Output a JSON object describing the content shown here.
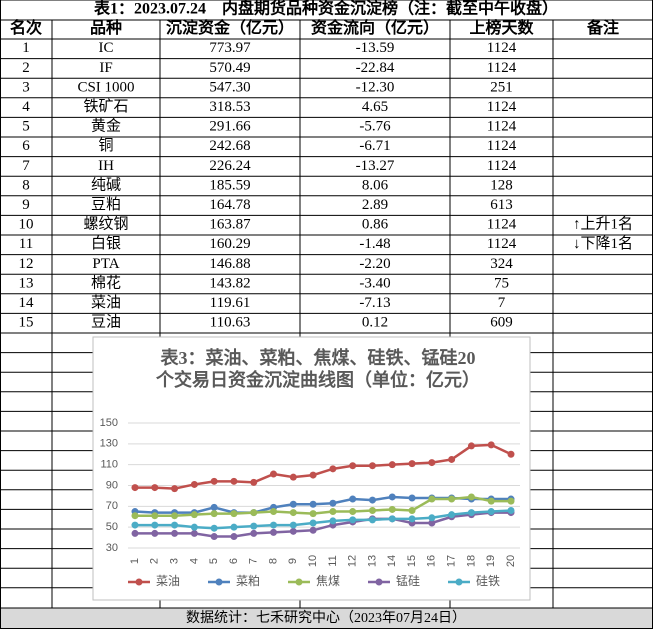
{
  "table": {
    "title": "表1：2023.07.24　内盘期货品种资金沉淀榜（注：截至中午收盘）",
    "headers": [
      "名次",
      "品种",
      "沉淀资金（亿元）",
      "资金流向（亿元）",
      "上榜天数",
      "备注"
    ],
    "rows": [
      [
        "1",
        "IC",
        "773.97",
        "-13.59",
        "1124",
        null
      ],
      [
        "2",
        "IF",
        "570.49",
        "-22.84",
        "1124",
        null
      ],
      [
        "3",
        "CSI 1000",
        "547.30",
        "-12.30",
        "251",
        null
      ],
      [
        "4",
        "铁矿石",
        "318.53",
        "4.65",
        "1124",
        null
      ],
      [
        "5",
        "黄金",
        "291.66",
        "-5.76",
        "1124",
        null
      ],
      [
        "6",
        "铜",
        "242.68",
        "-6.71",
        "1124",
        null
      ],
      [
        "7",
        "IH",
        "226.24",
        "-13.27",
        "1124",
        null
      ],
      [
        "8",
        "纯碱",
        "185.59",
        "8.06",
        "128",
        null
      ],
      [
        "9",
        "豆粕",
        "164.78",
        "2.89",
        "613",
        null
      ],
      [
        "10",
        "螺纹钢",
        "163.87",
        "0.86",
        "1124",
        "↑上升1名"
      ],
      [
        "11",
        "白银",
        "160.29",
        "-1.48",
        "1124",
        "↓下降1名"
      ],
      [
        "12",
        "PTA",
        "146.88",
        "-2.20",
        "324",
        null
      ],
      [
        "13",
        "棉花",
        "143.82",
        "-3.40",
        "75",
        null
      ],
      [
        "14",
        "菜油",
        "119.61",
        "-7.13",
        "7",
        null
      ],
      [
        "15",
        "豆油",
        "110.63",
        "0.12",
        "609",
        null
      ]
    ],
    "footer": "数据统计：七禾研究中心（2023年07月24日）"
  },
  "chart_data": {
    "type": "line",
    "title": [
      "表3：菜油、菜粕、焦煤、硅铁、锰硅20",
      "个交易日资金沉淀曲线图（单位：亿元）"
    ],
    "categories": [
      "1",
      "2",
      "3",
      "4",
      "5",
      "6",
      "7",
      "8",
      "9",
      "10",
      "11",
      "12",
      "13",
      "14",
      "15",
      "16",
      "17",
      "18",
      "19",
      "20"
    ],
    "ylim": [
      30,
      150
    ],
    "yticks": [
      30,
      50,
      70,
      90,
      110,
      130,
      150
    ],
    "grid": true,
    "series": [
      {
        "name": "菜油",
        "color": "#c0504d",
        "values": [
          88,
          88,
          87,
          91,
          94,
          94,
          93,
          101,
          98,
          100,
          106,
          109,
          109,
          110,
          111,
          112,
          115,
          128,
          129,
          120
        ]
      },
      {
        "name": "菜粕",
        "color": "#4f81bd",
        "values": [
          65,
          64,
          64,
          64,
          69,
          64,
          64,
          69,
          72,
          72,
          73,
          77,
          76,
          79,
          78,
          78,
          78,
          77,
          77,
          77
        ]
      },
      {
        "name": "焦煤",
        "color": "#9bbb59",
        "values": [
          61,
          61,
          61,
          62,
          63,
          63,
          64,
          65,
          64,
          63,
          65,
          65,
          66,
          67,
          66,
          77,
          77,
          79,
          75,
          75
        ]
      },
      {
        "name": "锰硅",
        "color": "#8064a2",
        "values": [
          44,
          44,
          44,
          44,
          41,
          41,
          44,
          45,
          46,
          47,
          52,
          55,
          58,
          58,
          54,
          54,
          60,
          62,
          64,
          64
        ]
      },
      {
        "name": "硅铁",
        "color": "#4bacc6",
        "values": [
          52,
          52,
          52,
          50,
          49,
          50,
          51,
          52,
          52,
          54,
          56,
          57,
          57,
          58,
          58,
          59,
          62,
          64,
          65,
          66
        ]
      }
    ]
  }
}
